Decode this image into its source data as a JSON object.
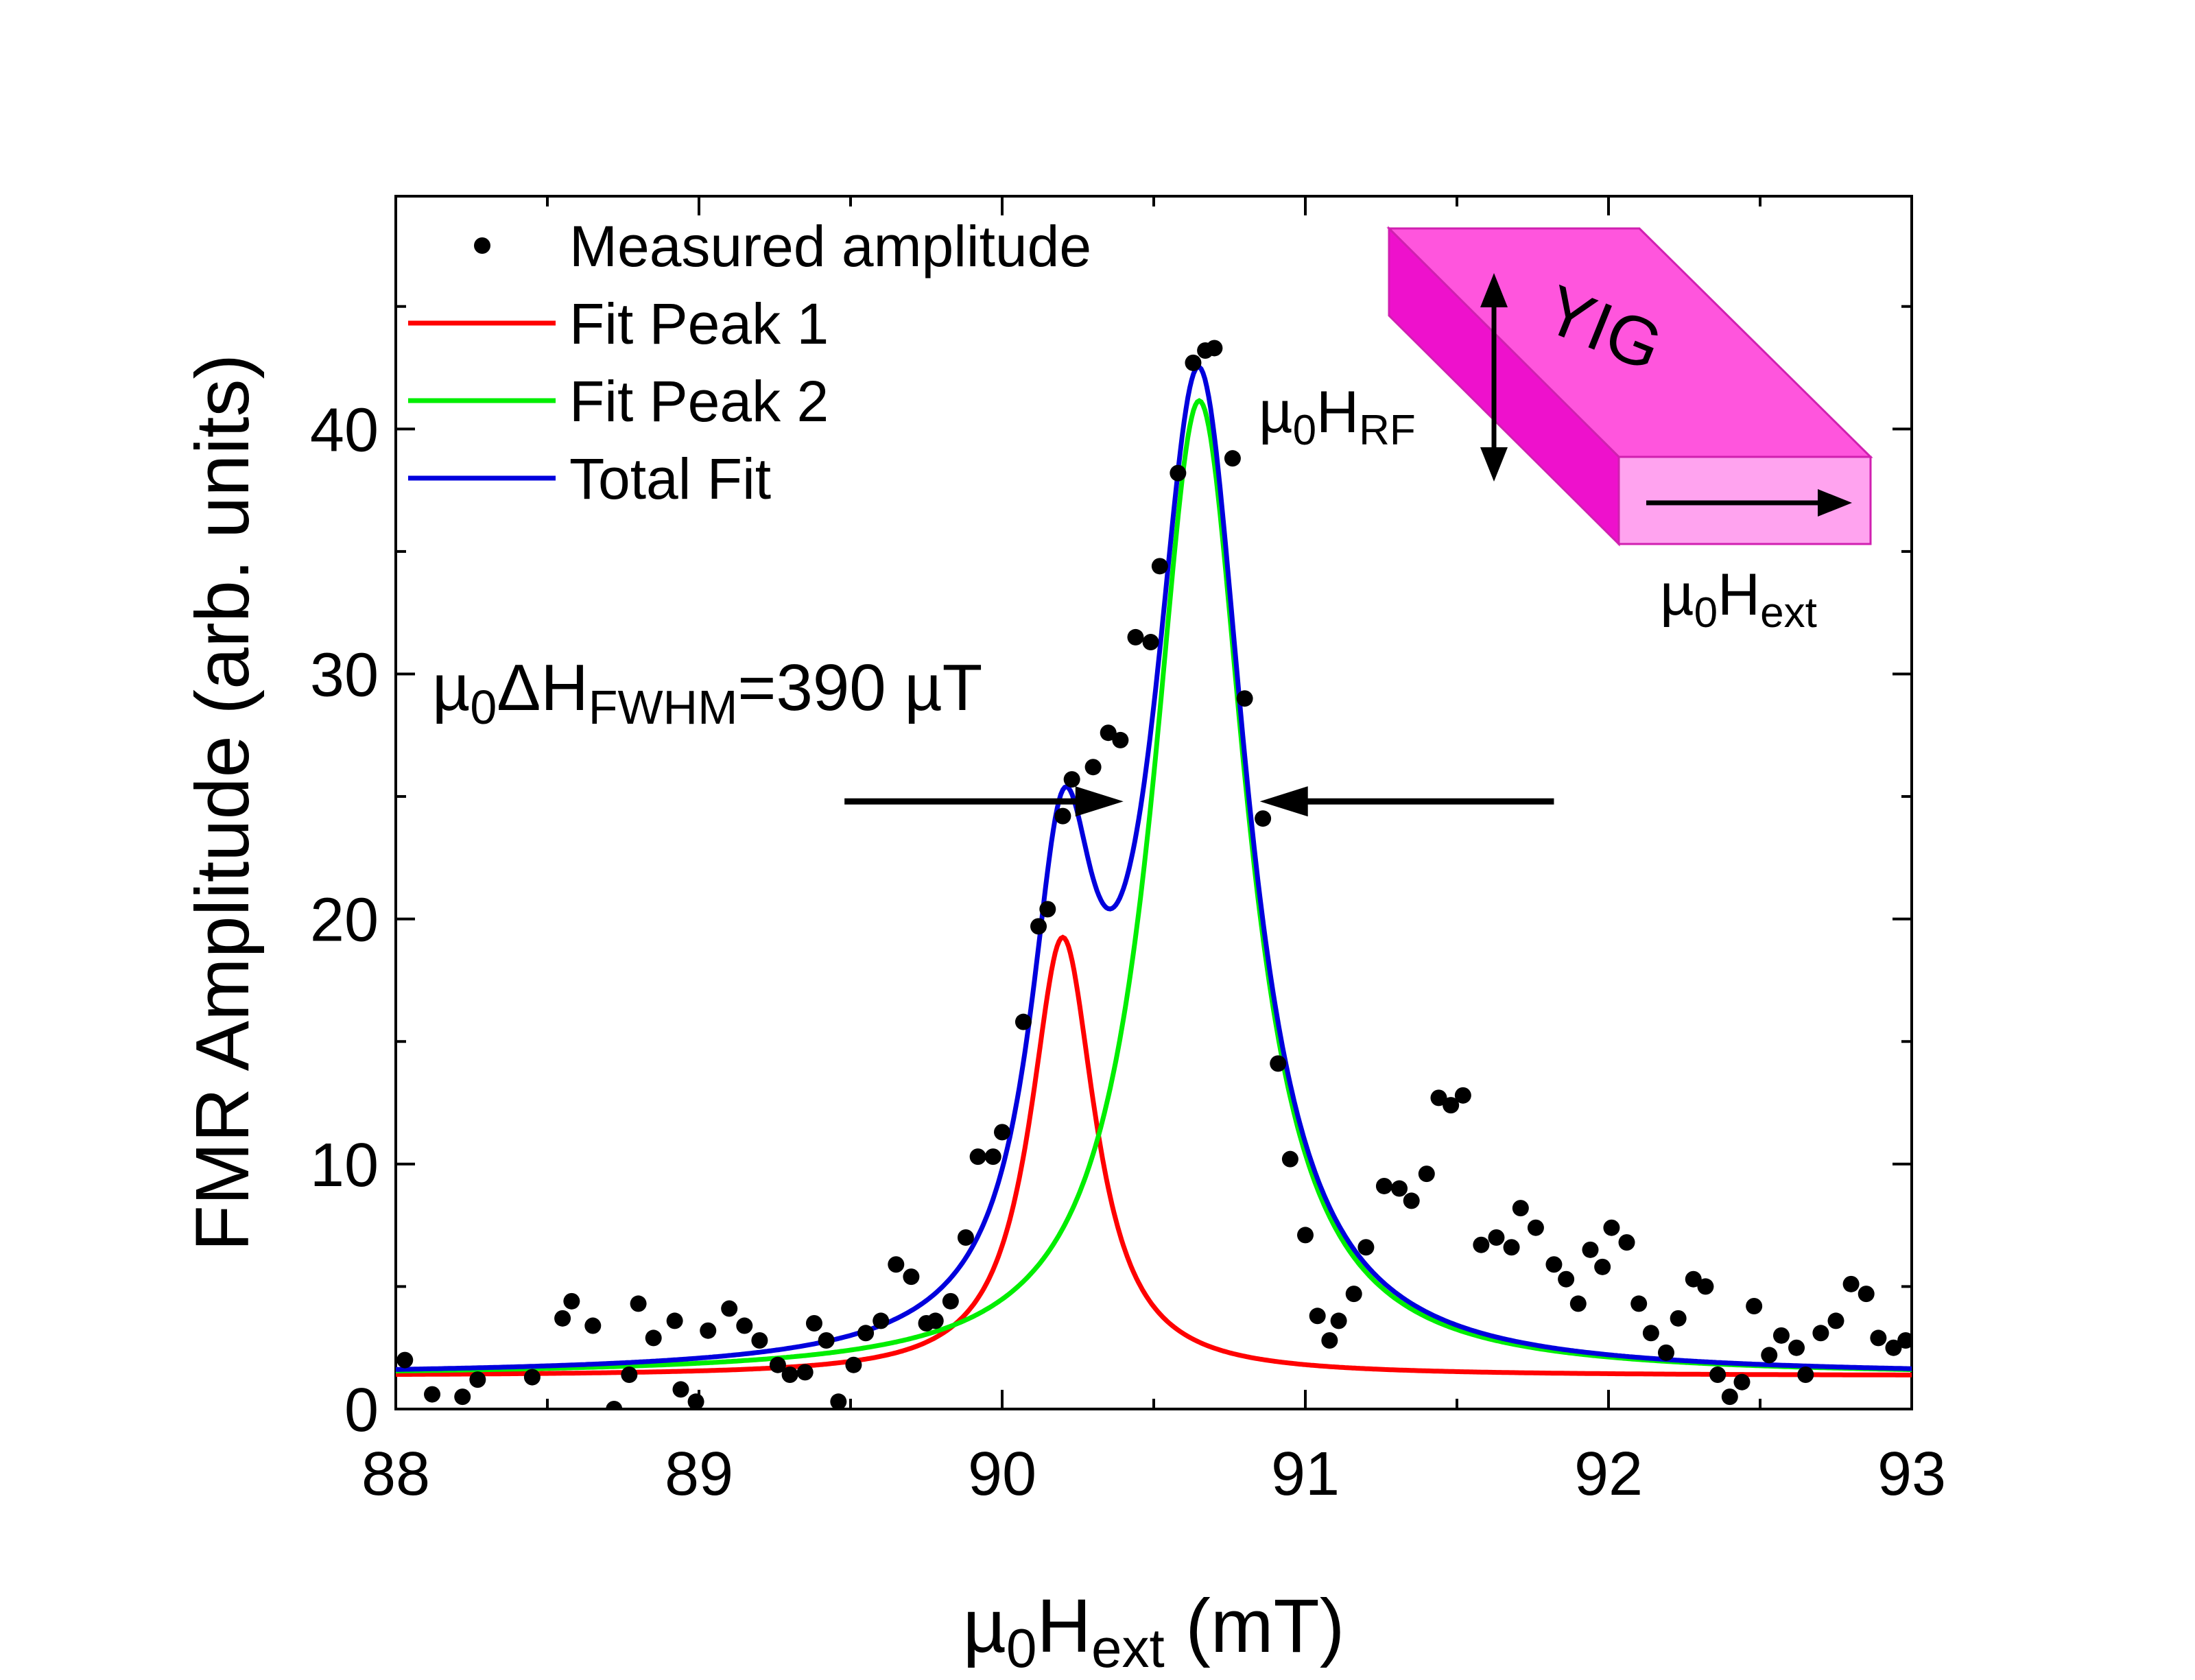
{
  "chart_data": {
    "type": "scatter",
    "title": "",
    "xlabel": {
      "prefix": "µ",
      "sub0": "0",
      "main": "H",
      "sub": "ext",
      "suffix": " (mT)"
    },
    "ylabel": "FMR Amplitude (arb. units)",
    "xlim": [
      88,
      93
    ],
    "ylim": [
      0,
      49.5
    ],
    "xticks": [
      88,
      89,
      90,
      91,
      92,
      93
    ],
    "yticks": [
      0,
      10,
      20,
      30,
      40
    ],
    "legend": {
      "placement": "top-left",
      "entries": [
        {
          "label": "Measured amplitude",
          "kind": "marker",
          "color": "#000000"
        },
        {
          "label": "Fit Peak 1",
          "kind": "line",
          "color": "#ff0000"
        },
        {
          "label": "Fit Peak 2",
          "kind": "line",
          "color": "#00ee00"
        },
        {
          "label": "Total Fit",
          "kind": "line",
          "color": "#0000dd"
        }
      ]
    },
    "annotations": {
      "fwhm": {
        "prefix": "µ",
        "sub0": "0",
        "main": "ΔH",
        "sub": "FWHM",
        "suffix": "=390 µT"
      },
      "fwhm_arrows": {
        "y": 24.8,
        "left": [
          89.48,
          90.4
        ],
        "right": [
          90.85,
          91.82
        ]
      },
      "inset_label": "YIG",
      "inset_rf": {
        "prefix": "µ",
        "sub0": "0",
        "main": "H",
        "sub": "RF"
      },
      "inset_ext": {
        "prefix": "µ",
        "sub0": "0",
        "main": "H",
        "sub": "ext"
      }
    },
    "fit_model": {
      "baseline": 1.35,
      "peak1": {
        "name": "Fit Peak 1",
        "center": 90.2,
        "width": 0.13,
        "amplitude": 17.9,
        "color": "#ff0000"
      },
      "peak2": {
        "name": "Fit Peak 2",
        "center": 90.65,
        "width": 0.19,
        "amplitude": 39.8,
        "color": "#00ee00"
      },
      "total_color": "#0000dd"
    },
    "series": [
      {
        "name": "Measured amplitude",
        "points": [
          [
            88.03,
            2.0
          ],
          [
            88.12,
            0.6
          ],
          [
            88.22,
            0.5
          ],
          [
            88.27,
            1.2
          ],
          [
            88.45,
            1.3
          ],
          [
            88.55,
            3.7
          ],
          [
            88.58,
            4.4
          ],
          [
            88.65,
            3.4
          ],
          [
            88.72,
            0.0
          ],
          [
            88.77,
            1.4
          ],
          [
            88.8,
            4.3
          ],
          [
            88.85,
            2.9
          ],
          [
            88.92,
            3.6
          ],
          [
            88.94,
            0.8
          ],
          [
            88.99,
            0.3
          ],
          [
            89.03,
            3.2
          ],
          [
            89.1,
            4.1
          ],
          [
            89.15,
            3.4
          ],
          [
            89.2,
            2.8
          ],
          [
            89.26,
            1.8
          ],
          [
            89.3,
            1.4
          ],
          [
            89.35,
            1.5
          ],
          [
            89.38,
            3.5
          ],
          [
            89.42,
            2.8
          ],
          [
            89.46,
            0.3
          ],
          [
            89.51,
            1.8
          ],
          [
            89.55,
            3.1
          ],
          [
            89.6,
            3.6
          ],
          [
            89.65,
            5.9
          ],
          [
            89.7,
            5.4
          ],
          [
            89.75,
            3.5
          ],
          [
            89.78,
            3.6
          ],
          [
            89.83,
            4.4
          ],
          [
            89.88,
            7.0
          ],
          [
            89.92,
            10.3
          ],
          [
            89.97,
            10.3
          ],
          [
            90.0,
            11.3
          ],
          [
            90.07,
            15.8
          ],
          [
            90.12,
            19.7
          ],
          [
            90.15,
            20.4
          ],
          [
            90.2,
            24.2
          ],
          [
            90.23,
            25.7
          ],
          [
            90.3,
            26.2
          ],
          [
            90.35,
            27.6
          ],
          [
            90.39,
            27.3
          ],
          [
            90.44,
            31.5
          ],
          [
            90.49,
            31.3
          ],
          [
            90.52,
            34.4
          ],
          [
            90.58,
            38.2
          ],
          [
            90.63,
            42.7
          ],
          [
            90.67,
            43.2
          ],
          [
            90.7,
            43.3
          ],
          [
            90.76,
            38.8
          ],
          [
            90.8,
            29.0
          ],
          [
            90.86,
            24.1
          ],
          [
            90.91,
            14.1
          ],
          [
            90.95,
            10.2
          ],
          [
            91.0,
            7.1
          ],
          [
            91.04,
            3.8
          ],
          [
            91.08,
            2.8
          ],
          [
            91.11,
            3.6
          ],
          [
            91.16,
            4.7
          ],
          [
            91.2,
            6.6
          ],
          [
            91.26,
            9.1
          ],
          [
            91.31,
            9.0
          ],
          [
            91.35,
            8.5
          ],
          [
            91.4,
            9.6
          ],
          [
            91.44,
            12.7
          ],
          [
            91.48,
            12.4
          ],
          [
            91.52,
            12.8
          ],
          [
            91.58,
            6.7
          ],
          [
            91.63,
            7.0
          ],
          [
            91.68,
            6.6
          ],
          [
            91.71,
            8.2
          ],
          [
            91.76,
            7.4
          ],
          [
            91.82,
            5.9
          ],
          [
            91.86,
            5.3
          ],
          [
            91.9,
            4.3
          ],
          [
            91.94,
            6.5
          ],
          [
            91.98,
            5.8
          ],
          [
            92.01,
            7.4
          ],
          [
            92.06,
            6.8
          ],
          [
            92.1,
            4.3
          ],
          [
            92.14,
            3.1
          ],
          [
            92.19,
            2.3
          ],
          [
            92.23,
            3.7
          ],
          [
            92.28,
            5.3
          ],
          [
            92.32,
            5.0
          ],
          [
            92.36,
            1.4
          ],
          [
            92.4,
            0.5
          ],
          [
            92.44,
            1.1
          ],
          [
            92.48,
            4.2
          ],
          [
            92.53,
            2.2
          ],
          [
            92.57,
            3.0
          ],
          [
            92.62,
            2.5
          ],
          [
            92.65,
            1.4
          ],
          [
            92.7,
            3.1
          ],
          [
            92.75,
            3.6
          ],
          [
            92.8,
            5.1
          ],
          [
            92.85,
            4.7
          ],
          [
            92.89,
            2.9
          ],
          [
            92.94,
            2.5
          ],
          [
            92.98,
            2.8
          ]
        ]
      }
    ]
  }
}
